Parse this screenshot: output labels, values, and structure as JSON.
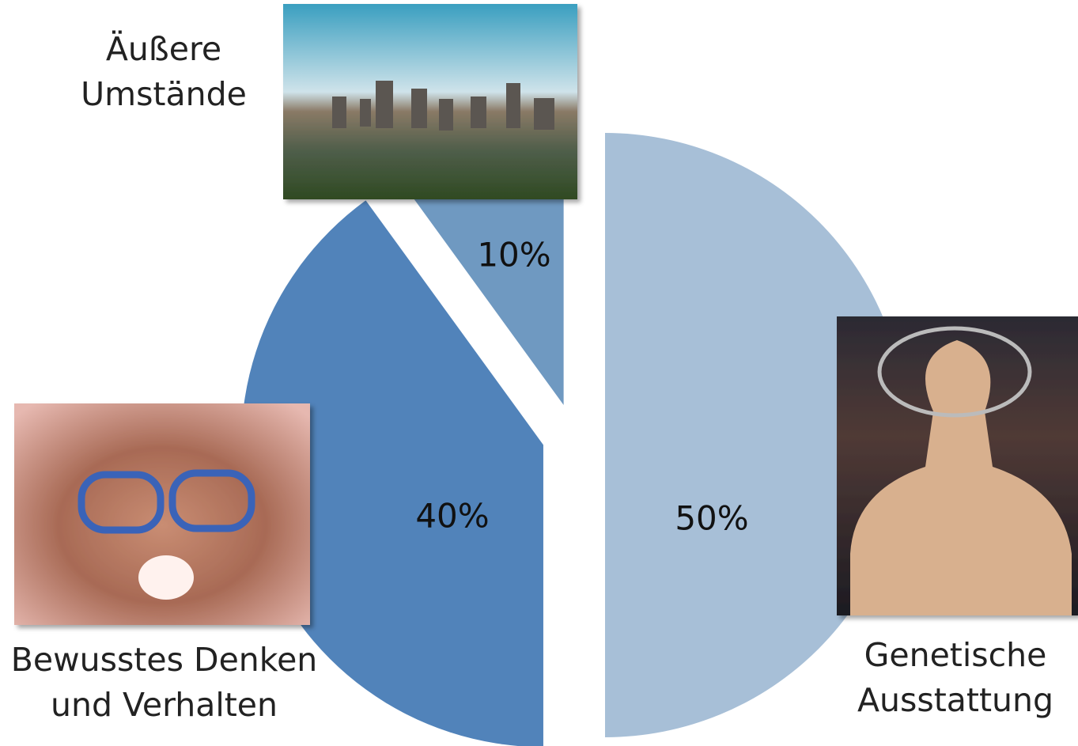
{
  "chart_data": {
    "type": "pie",
    "categories": [
      "Genetische Ausstattung",
      "Bewusstes Denken und Verhalten",
      "Äußere Umstände"
    ],
    "values": [
      50,
      40,
      10
    ],
    "value_labels": [
      "50%",
      "40%",
      "10%"
    ],
    "colors": [
      "#a7bfd7",
      "#5183ba",
      "#6f99c1"
    ]
  }
}
